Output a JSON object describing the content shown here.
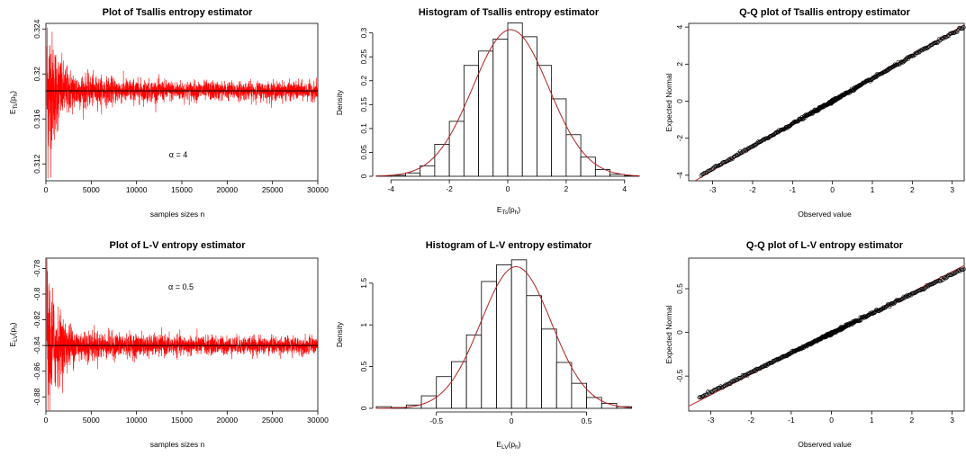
{
  "panels": {
    "tsallis_trace": {
      "title": "Plot of Tsallis entropy estimator",
      "xlabel": "samples sizes n",
      "annotation": "α = 4"
    },
    "tsallis_hist": {
      "title": "Histogram of Tsallis entropy estimator",
      "ylabel": "Density"
    },
    "tsallis_qq": {
      "title": "Q-Q plot of Tsallis entropy estimator",
      "xlabel": "Observed value",
      "ylabel": "Expected Normal"
    },
    "lv_trace": {
      "title": "Plot of L-V entropy estimator",
      "xlabel": "samples sizes n",
      "annotation": "α = 0.5"
    },
    "lv_hist": {
      "title": "Histogram of L-V entropy estimator",
      "ylabel": "Density"
    },
    "lv_qq": {
      "title": "Q-Q plot of L-V entropy estimator",
      "xlabel": "Observed value",
      "ylabel": "Expected Normal"
    }
  },
  "chart_data": [
    {
      "type": "line",
      "title": "Plot of Tsallis entropy estimator",
      "xlabel": "samples sizes n",
      "ylabel": "E_Ts(p_h)",
      "xlim": [
        0,
        30000
      ],
      "ylim": [
        0.3105,
        0.3245
      ],
      "xticks": [
        0,
        5000,
        10000,
        15000,
        20000,
        25000,
        30000
      ],
      "yticks": [
        0.312,
        0.316,
        0.32,
        0.324
      ],
      "reference_line": 0.3185,
      "annotation": "α = 4",
      "series": [
        {
          "color": "#ff0000",
          "center": 0.3185,
          "x_range": [
            100,
            30000
          ]
        }
      ]
    },
    {
      "type": "bar",
      "title": "Histogram of Tsallis entropy estimator",
      "xlabel": "E_Ts(p_h)",
      "ylabel": "Density",
      "xlim": [
        -4.5,
        4.5
      ],
      "ylim": [
        0,
        0.32
      ],
      "xticks": [
        -4,
        -2,
        0,
        2,
        4
      ],
      "yticks": [
        0,
        0.05,
        0.1,
        0.15,
        0.2,
        0.25,
        0.3
      ],
      "bin_edges": [
        -4.5,
        -4,
        -3.5,
        -3,
        -2.5,
        -2,
        -1.5,
        -1,
        -0.5,
        0,
        0.5,
        1,
        1.5,
        2,
        2.5,
        3,
        3.5,
        4,
        4.5
      ],
      "values": [
        0.001,
        0.002,
        0.007,
        0.022,
        0.067,
        0.115,
        0.232,
        0.262,
        0.287,
        0.321,
        0.292,
        0.232,
        0.162,
        0.087,
        0.04,
        0.014,
        0.004,
        0.001
      ],
      "density_curve": {
        "type": "normal",
        "mean": 0.1,
        "sd": 1.3,
        "color": "#b22222"
      }
    },
    {
      "type": "scatter",
      "title": "Q-Q plot of Tsallis entropy estimator",
      "xlabel": "Observed value",
      "ylabel": "Expected Normal",
      "xlim": [
        -3.6,
        3.3
      ],
      "ylim": [
        -4.3,
        4.2
      ],
      "xticks": [
        -3,
        -2,
        -1,
        0,
        1,
        2,
        3
      ],
      "yticks": [
        -4,
        -2,
        0,
        2,
        4
      ],
      "reference_line": {
        "slope": 1.25,
        "intercept": 0.0,
        "color": "#c62828"
      },
      "points": {
        "slope": 1.22,
        "range": [
          -3.3,
          3.3
        ]
      }
    },
    {
      "type": "line",
      "title": "Plot of L-V entropy estimator",
      "xlabel": "samples sizes n",
      "ylabel": "E_LV(p_h)",
      "xlim": [
        0,
        30000
      ],
      "ylim": [
        -0.891,
        -0.772
      ],
      "xticks": [
        0,
        5000,
        10000,
        15000,
        20000,
        25000,
        30000
      ],
      "yticks": [
        -0.88,
        -0.86,
        -0.84,
        -0.82,
        -0.8,
        -0.78
      ],
      "reference_line": -0.84,
      "annotation": "α = 0.5",
      "series": [
        {
          "color": "#ff0000",
          "center": -0.84,
          "x_range": [
            100,
            30000
          ]
        }
      ]
    },
    {
      "type": "bar",
      "title": "Histogram of L-V entropy estimator",
      "xlabel": "E_LV(p_h)",
      "ylabel": "Density",
      "xlim": [
        -0.9,
        0.85
      ],
      "ylim": [
        0,
        1.8
      ],
      "xticks": [
        -0.5,
        0,
        0.5
      ],
      "yticks": [
        0,
        0.5,
        1,
        1.5
      ],
      "bin_edges": [
        -0.9,
        -0.8,
        -0.7,
        -0.6,
        -0.5,
        -0.4,
        -0.3,
        -0.2,
        -0.1,
        0,
        0.1,
        0.2,
        0.3,
        0.4,
        0.5,
        0.6,
        0.7,
        0.8
      ],
      "values": [
        0.02,
        0.01,
        0.04,
        0.15,
        0.38,
        0.56,
        0.88,
        1.52,
        1.72,
        1.78,
        1.35,
        0.95,
        0.55,
        0.3,
        0.13,
        0.06,
        0.02
      ],
      "density_curve": {
        "type": "normal",
        "mean": 0.03,
        "sd": 0.235,
        "color": "#b22222"
      }
    },
    {
      "type": "scatter",
      "title": "Q-Q plot of L-V entropy estimator",
      "xlabel": "Observed value",
      "ylabel": "Expected Normal",
      "xlim": [
        -3.55,
        3.3
      ],
      "ylim": [
        -0.9,
        0.85
      ],
      "xticks": [
        -3,
        -2,
        -1,
        0,
        1,
        2,
        3
      ],
      "yticks": [
        -0.5,
        0,
        0.5
      ],
      "reference_line": {
        "slope": 0.235,
        "intercept": -0.01,
        "color": "#c62828"
      },
      "points": {
        "slope": 0.225,
        "range": [
          -3.3,
          3.3
        ]
      }
    }
  ]
}
